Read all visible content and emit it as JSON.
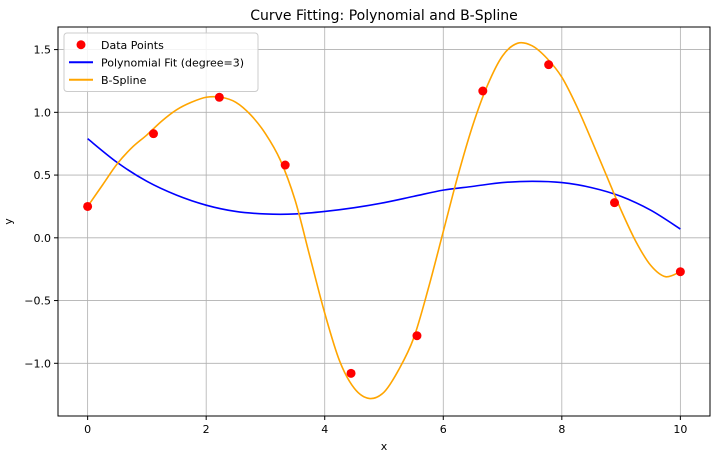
{
  "chart_data": {
    "type": "line",
    "title": "Curve Fitting: Polynomial and B-Spline",
    "xlabel": "x",
    "ylabel": "y",
    "xlim": [
      -0.5,
      10.5
    ],
    "ylim": [
      -1.42,
      1.68
    ],
    "x_ticks": [
      0,
      2,
      4,
      6,
      8,
      10
    ],
    "y_ticks": [
      -1.0,
      -0.5,
      0.0,
      0.5,
      1.0,
      1.5
    ],
    "x_tick_labels": [
      "0",
      "2",
      "4",
      "6",
      "8",
      "10"
    ],
    "y_tick_labels": [
      "−1.0",
      "−0.5",
      "0.0",
      "0.5",
      "1.0",
      "1.5"
    ],
    "grid": true,
    "legend_position": "top-left",
    "legend": [
      "Data Points",
      "Polynomial Fit (degree=3)",
      "B-Spline"
    ],
    "series": [
      {
        "name": "Data Points",
        "kind": "scatter",
        "color": "#ff0000",
        "x": [
          0,
          1.111,
          2.222,
          3.333,
          4.444,
          5.556,
          6.667,
          7.778,
          8.889,
          10
        ],
        "y": [
          0.25,
          0.83,
          1.12,
          0.58,
          -1.08,
          -0.78,
          1.17,
          1.38,
          0.28,
          -0.27
        ]
      },
      {
        "name": "Polynomial Fit (degree=3)",
        "kind": "line",
        "color": "#0000ff",
        "x": [
          0,
          0.5,
          1,
          1.5,
          2,
          2.5,
          3,
          3.5,
          4,
          4.5,
          5,
          5.5,
          6,
          6.5,
          7,
          7.5,
          8,
          8.5,
          9,
          9.5,
          10
        ],
        "y": [
          0.79,
          0.6,
          0.45,
          0.34,
          0.26,
          0.21,
          0.19,
          0.19,
          0.21,
          0.24,
          0.28,
          0.33,
          0.38,
          0.41,
          0.44,
          0.45,
          0.44,
          0.4,
          0.33,
          0.22,
          0.07
        ]
      },
      {
        "name": "B-Spline",
        "kind": "line",
        "color": "#ffa500",
        "x": [
          0,
          0.25,
          0.5,
          0.75,
          1.0,
          1.25,
          1.5,
          1.75,
          2.0,
          2.25,
          2.5,
          2.75,
          3.0,
          3.25,
          3.5,
          3.75,
          4.0,
          4.25,
          4.5,
          4.75,
          5.0,
          5.25,
          5.5,
          5.75,
          6.0,
          6.25,
          6.5,
          6.75,
          7.0,
          7.25,
          7.5,
          7.75,
          8.0,
          8.25,
          8.5,
          8.75,
          9.0,
          9.25,
          9.5,
          9.75,
          10.0
        ],
        "y": [
          0.25,
          0.42,
          0.59,
          0.72,
          0.82,
          0.93,
          1.02,
          1.08,
          1.12,
          1.12,
          1.08,
          0.98,
          0.83,
          0.62,
          0.3,
          -0.15,
          -0.6,
          -0.98,
          -1.2,
          -1.28,
          -1.23,
          -1.05,
          -0.8,
          -0.4,
          0.05,
          0.5,
          0.9,
          1.22,
          1.45,
          1.55,
          1.53,
          1.43,
          1.28,
          1.05,
          0.78,
          0.5,
          0.22,
          -0.03,
          -0.22,
          -0.31,
          -0.27
        ]
      }
    ]
  }
}
